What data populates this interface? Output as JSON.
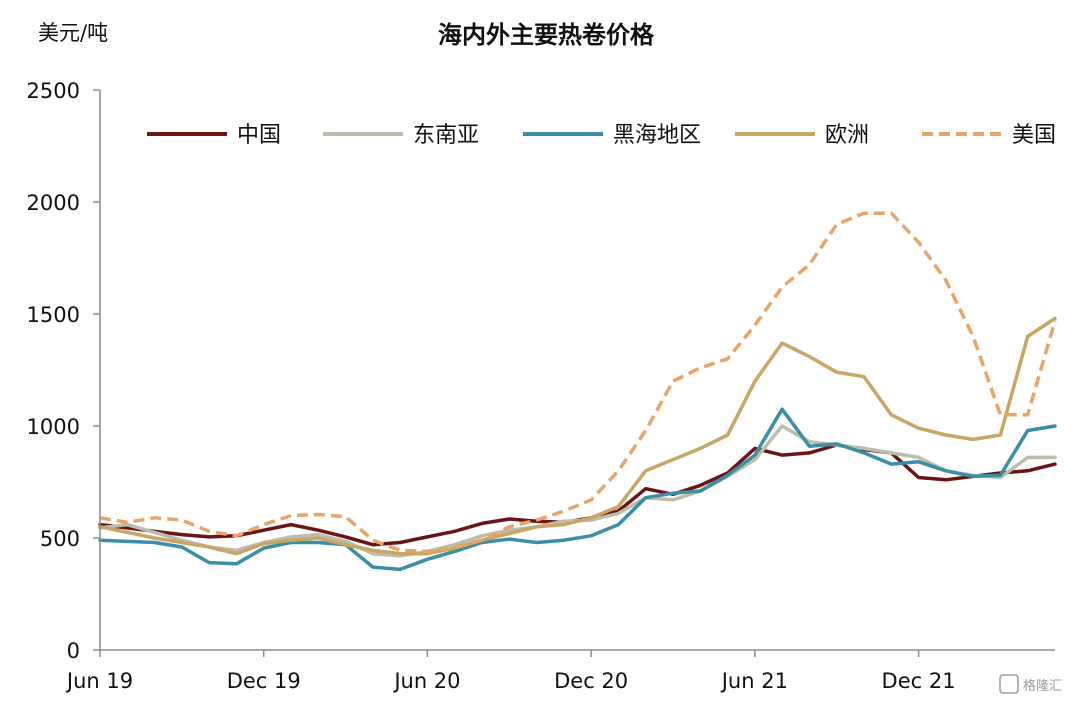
{
  "chart_data": {
    "type": "line",
    "title": "海内外主要热卷价格",
    "unit_label": "美元/吨",
    "xlabel": "",
    "ylabel": "",
    "x_ticks": [
      "Jun 19",
      "Dec 19",
      "Jun 20",
      "Dec 20",
      "Jun 21",
      "Dec 21"
    ],
    "y_ticks": [
      "0",
      "500",
      "1000",
      "1500",
      "2000",
      "2500"
    ],
    "ylim": [
      0,
      2500
    ],
    "x_axis_months": [
      0,
      35
    ],
    "grid": false,
    "legend_position": "top",
    "x": [
      0,
      1,
      2,
      3,
      4,
      5,
      6,
      7,
      8,
      9,
      10,
      11,
      12,
      13,
      14,
      15,
      16,
      17,
      18,
      19,
      20,
      21,
      22,
      23,
      24,
      25,
      26,
      27,
      28,
      29,
      30,
      31,
      32,
      33,
      34,
      35
    ],
    "series": [
      {
        "name": "中国",
        "color": "#6b1416",
        "dashed": false,
        "values": [
          560,
          545,
          530,
          515,
          505,
          510,
          535,
          560,
          535,
          505,
          470,
          480,
          505,
          530,
          565,
          585,
          575,
          570,
          590,
          620,
          720,
          695,
          735,
          790,
          900,
          870,
          880,
          915,
          895,
          880,
          770,
          760,
          775,
          790,
          800,
          830
        ]
      },
      {
        "name": "东南亚",
        "color": "#bdbdae",
        "dashed": false,
        "values": [
          545,
          560,
          525,
          490,
          460,
          445,
          480,
          505,
          515,
          485,
          430,
          420,
          440,
          470,
          510,
          535,
          550,
          575,
          580,
          610,
          680,
          670,
          710,
          775,
          850,
          1000,
          930,
          915,
          900,
          880,
          860,
          800,
          780,
          770,
          860,
          860
        ]
      },
      {
        "name": "黑海地区",
        "color": "#3a8ea5",
        "dashed": false,
        "values": [
          490,
          485,
          480,
          460,
          390,
          385,
          455,
          480,
          480,
          470,
          370,
          360,
          405,
          440,
          480,
          495,
          480,
          490,
          510,
          560,
          680,
          700,
          710,
          780,
          870,
          1075,
          910,
          920,
          880,
          830,
          840,
          800,
          775,
          780,
          980,
          1000
        ]
      },
      {
        "name": "欧洲",
        "color": "#c8a664",
        "dashed": false,
        "values": [
          550,
          525,
          500,
          480,
          460,
          430,
          475,
          490,
          500,
          470,
          445,
          430,
          430,
          455,
          490,
          520,
          550,
          560,
          590,
          640,
          800,
          850,
          900,
          960,
          1200,
          1370,
          1310,
          1240,
          1220,
          1050,
          990,
          960,
          940,
          960,
          1400,
          1480
        ]
      },
      {
        "name": "美国",
        "color": "#e8a56a",
        "dashed": true,
        "values": [
          590,
          570,
          590,
          580,
          530,
          510,
          560,
          600,
          605,
          595,
          490,
          445,
          440,
          460,
          490,
          550,
          580,
          620,
          670,
          800,
          980,
          1200,
          1260,
          1300,
          1450,
          1620,
          1720,
          1900,
          1950,
          1950,
          1820,
          1650,
          1400,
          1050,
          1050,
          1470
        ]
      }
    ]
  },
  "watermark": {
    "text": "格隆汇"
  }
}
